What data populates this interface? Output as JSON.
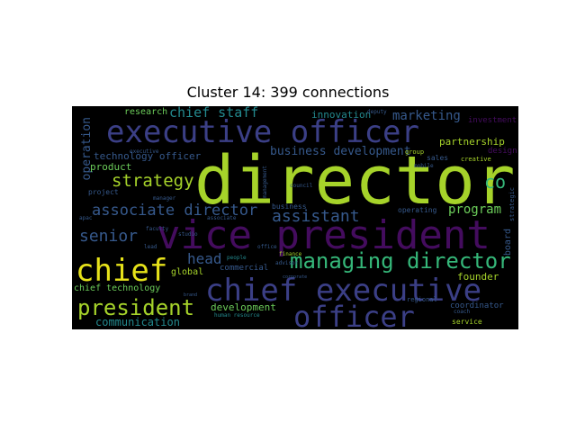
{
  "title": "Cluster 14: 399 connections",
  "colors": {
    "background": "#000000",
    "yellow_green": "#a6d32a",
    "purple": "#440c5e",
    "navy_purple": "#3b3f86",
    "slate_blue": "#36598c",
    "teal": "#23898e",
    "green": "#35b779",
    "light_green": "#6ccd5a",
    "yellow": "#e6e21a"
  },
  "words": [
    "director",
    "vice president",
    "executive officer",
    "chief executive",
    "officer",
    "chief",
    "managing director",
    "president",
    "assistant",
    "associate director",
    "strategy",
    "senior",
    "co",
    "head",
    "program",
    "marketing",
    "chief staff",
    "business development",
    "technology officer",
    "operation",
    "product",
    "communication",
    "partnership",
    "innovation",
    "development",
    "chief technology",
    "founder",
    "research",
    "investment",
    "design",
    "global",
    "commercial",
    "coordinator",
    "board",
    "project",
    "creative",
    "sales",
    "group",
    "service",
    "operating",
    "regional",
    "strategic",
    "deputy",
    "finance",
    "people",
    "manager",
    "office",
    "associate",
    "advisor",
    "coach",
    "human resource",
    "business",
    "brand",
    "studio",
    "faculty",
    "management",
    "corporate",
    "council",
    "lead",
    "apac",
    "mobile",
    "executive"
  ]
}
